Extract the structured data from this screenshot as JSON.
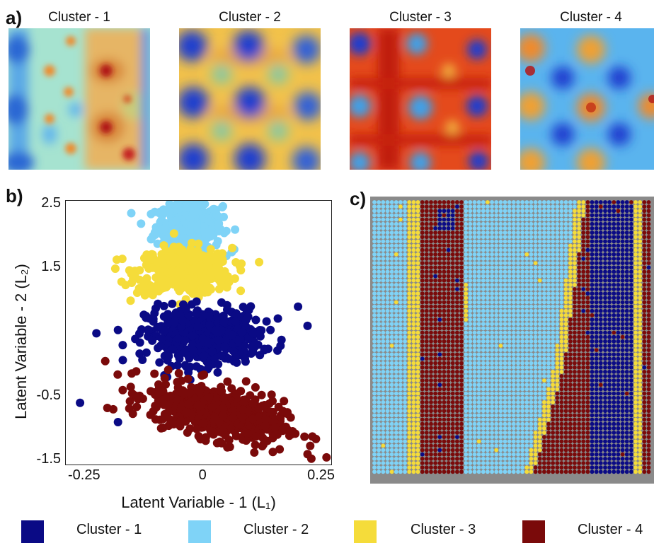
{
  "panel_labels": {
    "a": "a)",
    "b": "b)",
    "c": "c)"
  },
  "heatmap_titles": [
    "Cluster - 1",
    "Cluster - 2",
    "Cluster - 3",
    "Cluster - 4"
  ],
  "colors": {
    "cluster1": "#0a0a85",
    "cluster2": "#7fd3f7",
    "cluster3": "#f5dc3a",
    "cluster4": "#7a0a0a"
  },
  "legend": [
    {
      "label": "Cluster - 1",
      "color": "#0a0a85"
    },
    {
      "label": "Cluster - 2",
      "color": "#7fd3f7"
    },
    {
      "label": "Cluster - 3",
      "color": "#f5dc3a"
    },
    {
      "label": "Cluster - 4",
      "color": "#7a0a0a"
    }
  ],
  "chart_data": {
    "type": "scatter",
    "xlabel": "Latent Variable - 1 (L₁)",
    "ylabel": "Latent Variable - 2 (L₂)",
    "xlim": [
      -0.29,
      0.27
    ],
    "ylim": [
      -1.55,
      2.55
    ],
    "xticks": [
      -0.25,
      0,
      0.25
    ],
    "xtick_labels": [
      "-0.25",
      "0",
      "0.25"
    ],
    "yticks": [
      2.5,
      1.5,
      -0.5,
      -1.5
    ],
    "ytick_labels": [
      "2.5",
      "1.5",
      "-0.5",
      "-1.5"
    ],
    "series": [
      {
        "name": "Cluster - 2",
        "color": "#7fd3f7",
        "center": [
          -0.03,
          2.15
        ],
        "spread": [
          0.035,
          0.18
        ],
        "n": 320,
        "outliers": [
          [
            -0.11,
            1.95
          ],
          [
            0.04,
            2.45
          ],
          [
            -0.02,
            2.48
          ],
          [
            0.06,
            1.75
          ]
        ]
      },
      {
        "name": "Cluster - 3",
        "color": "#f5dc3a",
        "center": [
          -0.04,
          1.45
        ],
        "spread": [
          0.05,
          0.18
        ],
        "n": 420,
        "outliers": [
          [
            -0.12,
            1.55
          ],
          [
            0.05,
            1.2
          ]
        ]
      },
      {
        "name": "Cluster - 1",
        "color": "#0a0a85",
        "center": [
          0.0,
          0.45
        ],
        "spread": [
          0.06,
          0.22
        ],
        "n": 480,
        "outliers": [
          [
            -0.26,
            -0.6
          ],
          [
            -0.18,
            -0.9
          ],
          [
            0.2,
            0.9
          ],
          [
            0.22,
            0.6
          ],
          [
            -0.17,
            0.3
          ]
        ]
      },
      {
        "name": "Cluster - 4",
        "color": "#7a0a0a",
        "center": [
          0.03,
          -0.75
        ],
        "spread": [
          0.07,
          0.2
        ],
        "n": 620,
        "slope": -1.6,
        "outliers": [
          [
            0.26,
            -1.45
          ],
          [
            0.22,
            -1.4
          ],
          [
            -0.17,
            -0.4
          ],
          [
            -0.19,
            -0.7
          ]
        ]
      }
    ]
  },
  "map_data": {
    "type": "heatmap",
    "legend_order": [
      "cluster2",
      "cluster3",
      "cluster4",
      "cluster1"
    ]
  }
}
